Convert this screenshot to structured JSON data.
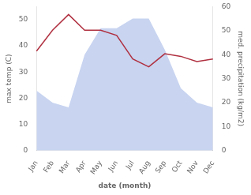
{
  "chart_data": {
    "type": "line",
    "categories": [
      "Jan",
      "Feb",
      "Mar",
      "Apr",
      "May",
      "Jun",
      "Jul",
      "Aug",
      "Sep",
      "Oct",
      "Nov",
      "Dec"
    ],
    "series": [
      {
        "type": "area",
        "axis": "y2",
        "color": "#c8d4f0",
        "values": [
          25,
          20,
          18,
          40,
          51,
          51,
          55,
          55,
          42,
          26,
          20,
          18
        ]
      },
      {
        "type": "line",
        "axis": "y",
        "color": "#b03040",
        "values": [
          38,
          46,
          52,
          46,
          46,
          44,
          35,
          32,
          37,
          36,
          34,
          35
        ]
      }
    ],
    "xlabel": "date (month)",
    "ylabel": "max temp (C)",
    "y2label": "med. precipitation (kg/m2)",
    "ylim": [
      0,
      55
    ],
    "yticks": [
      0,
      10,
      20,
      30,
      40,
      50
    ],
    "y2lim": [
      0,
      60
    ],
    "y2ticks": [
      0,
      10,
      20,
      30,
      40,
      50,
      60
    ],
    "grid": false
  }
}
